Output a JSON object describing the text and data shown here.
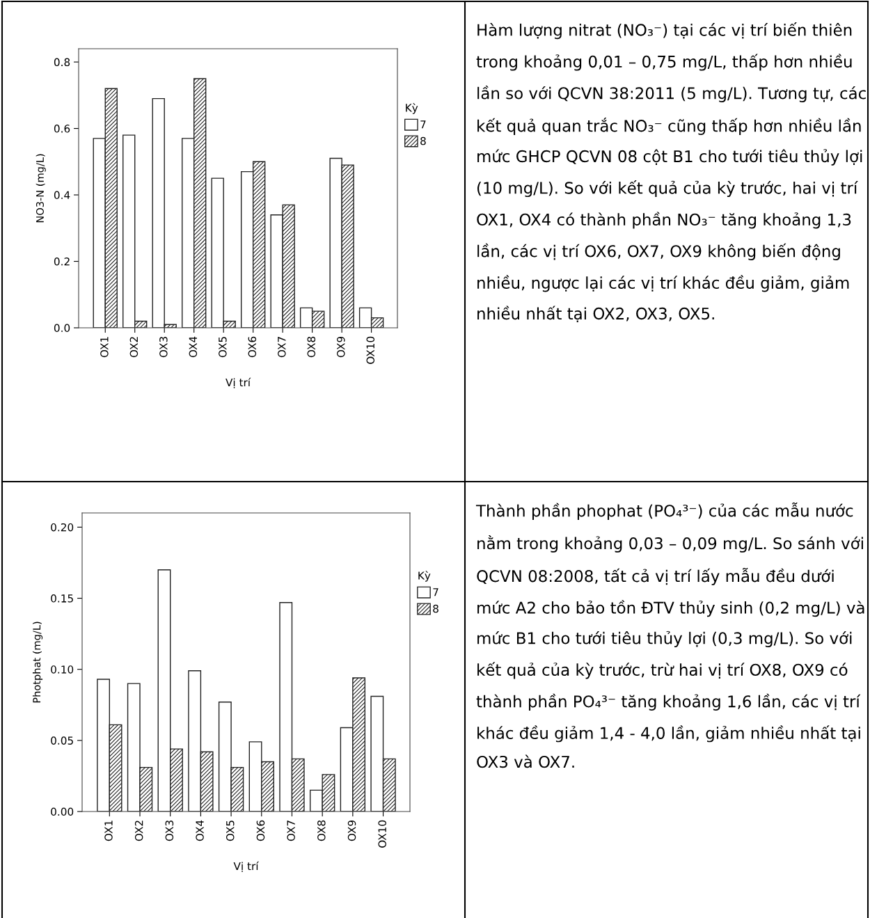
{
  "chart_data": [
    {
      "type": "bar",
      "xlabel": "Vị trí",
      "ylabel": "NO3-N (mg/L)",
      "legend_title": "Kỳ",
      "legend": "right",
      "grid": false,
      "categories": [
        "OX1",
        "OX2",
        "OX3",
        "OX4",
        "OX5",
        "OX6",
        "OX7",
        "OX8",
        "OX9",
        "OX10"
      ],
      "series": [
        {
          "name": "7",
          "color": "#ffffff",
          "values": [
            0.57,
            0.58,
            0.69,
            0.57,
            0.45,
            0.47,
            0.34,
            0.06,
            0.51,
            0.06
          ]
        },
        {
          "name": "8",
          "color": "#222222",
          "values": [
            0.72,
            0.02,
            0.01,
            0.75,
            0.02,
            0.5,
            0.37,
            0.05,
            0.49,
            0.03
          ]
        }
      ],
      "ylim": [
        0,
        0.84
      ],
      "yticks": [
        {
          "value": 0,
          "label": "0.0"
        },
        {
          "value": 0.2,
          "label": "0.2"
        },
        {
          "value": 0.4,
          "label": "0.4"
        },
        {
          "value": 0.6,
          "label": "0.6"
        },
        {
          "value": 0.8,
          "label": "0.8"
        }
      ]
    },
    {
      "type": "other",
      "annotations": [
        "Hàm lượng nitrat (NO₃⁻) tại các vị trí biến thiên trong khoảng 0,01 – 0,75 mg/L, thấp hơn nhiều lần so với QCVN 38:2011 (5 mg/L). Tương tự, các kết quả quan trắc NO₃⁻ cũng thấp hơn nhiều lần mức GHCP QCVN 08 cột B1 cho tưới tiêu thủy lợi (10 mg/L). So với kết quả của kỳ trước, hai vị trí OX1, OX4 có thành phần NO₃⁻ tăng khoảng 1,3 lần, các vị trí OX6, OX7, OX9 không biến động nhiều, ngược lại các vị trí khác đều giảm, giảm nhiều nhất tại OX2, OX3, OX5."
      ]
    },
    {
      "type": "bar",
      "xlabel": "Vị trí",
      "ylabel": "Photphat (mg/L)",
      "legend_title": "Kỳ",
      "legend": "right",
      "grid": false,
      "categories": [
        "OX1",
        "OX2",
        "OX3",
        "OX4",
        "OX5",
        "OX6",
        "OX7",
        "OX8",
        "OX9",
        "OX10"
      ],
      "series": [
        {
          "name": "7",
          "color": "#ffffff",
          "values": [
            0.093,
            0.09,
            0.17,
            0.099,
            0.077,
            0.049,
            0.147,
            0.015,
            0.059,
            0.081
          ]
        },
        {
          "name": "8",
          "color": "#222222",
          "values": [
            0.061,
            0.031,
            0.044,
            0.042,
            0.031,
            0.035,
            0.037,
            0.026,
            0.094,
            0.037
          ]
        }
      ],
      "ylim": [
        0,
        0.21
      ],
      "yticks": [
        {
          "value": 0,
          "label": "0.00"
        },
        {
          "value": 0.05,
          "label": "0.05"
        },
        {
          "value": 0.1,
          "label": "0.10"
        },
        {
          "value": 0.15,
          "label": "0.15"
        },
        {
          "value": 0.2,
          "label": "0.20"
        }
      ]
    },
    {
      "type": "other",
      "annotations": [
        "Thành phần phophat (PO₄³⁻) của các mẫu nước nằm trong khoảng 0,03 – 0,09 mg/L. So sánh với QCVN 08:2008, tất cả vị trí lấy mẫu đều dưới mức A2 cho bảo tồn ĐTV thủy sinh (0,2 mg/L) và mức B1 cho tưới tiêu thủy lợi (0,3 mg/L). So với kết quả của kỳ trước, trừ hai vị trí OX8, OX9 có thành phần PO₄³⁻ tăng khoảng 1,6 lần, các vị trí khác đều giảm 1,4 - 4,0 lần, giảm nhiều nhất tại OX3 và OX7."
      ]
    }
  ]
}
